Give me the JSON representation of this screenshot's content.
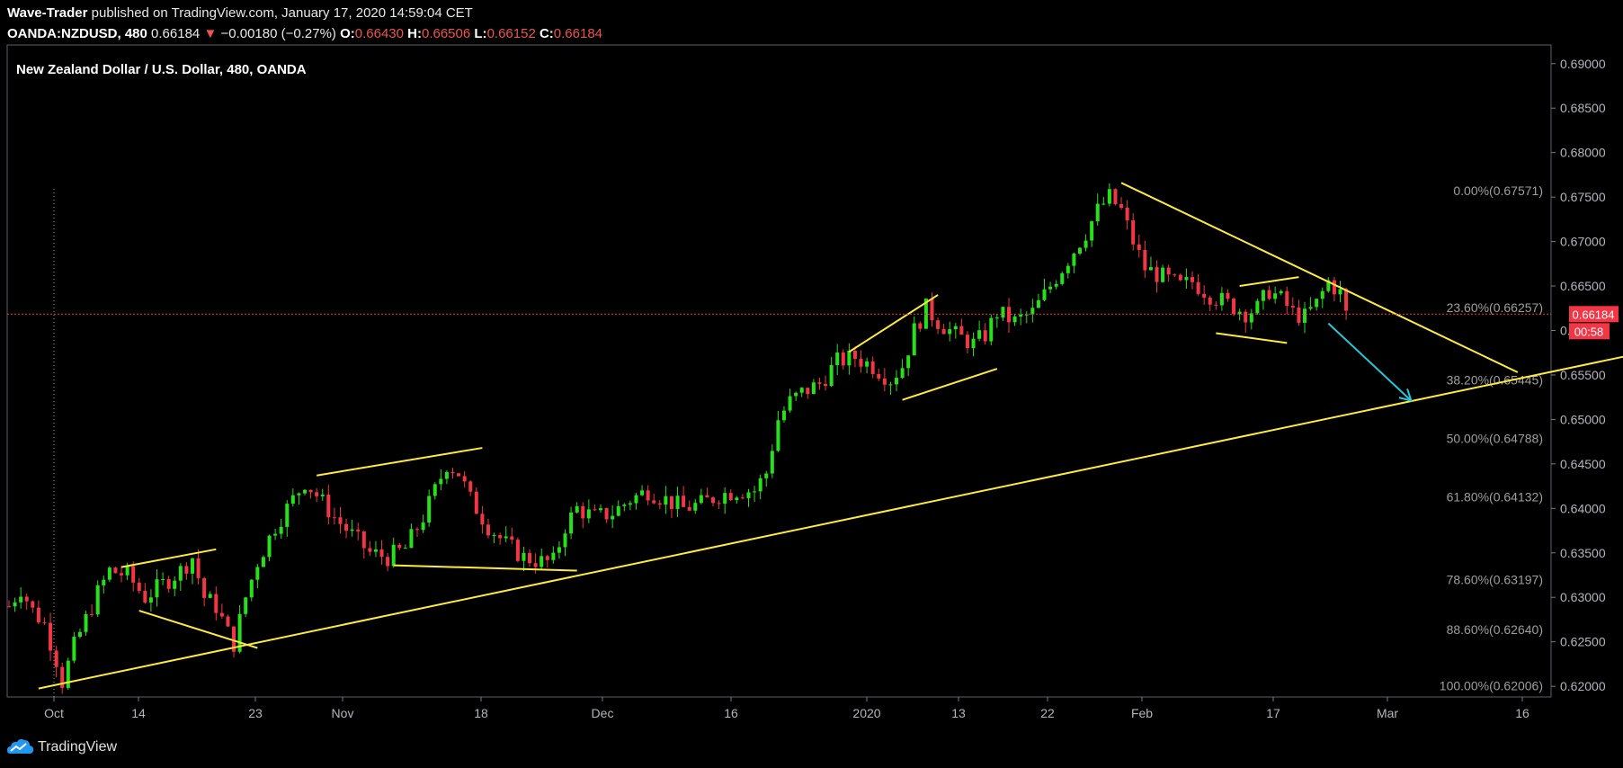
{
  "header": {
    "author": "Wave-Trader",
    "published": "published on TradingView.com, January 17, 2020 14:59:04 CET",
    "symbol": "OANDA:NZDUSD, 480",
    "last": "0.66184",
    "change": "−0.00180 (−0.27%)",
    "open_label": "O:",
    "open": "0.66430",
    "high_label": "H:",
    "high": "0.66506",
    "low_label": "L:",
    "low": "0.66152",
    "close_label": "C:",
    "close": "0.66184"
  },
  "chart_data": {
    "type": "candlestick",
    "title": "New Zealand Dollar / U.S. Dollar, 480, OANDA",
    "ylim": [
      0.6188,
      0.6921
    ],
    "y_ticks": [
      "0.69000",
      "0.68500",
      "0.68000",
      "0.67500",
      "0.67000",
      "0.66500",
      "0.66000",
      "0.65500",
      "0.65000",
      "0.64500",
      "0.64000",
      "0.63500",
      "0.63000",
      "0.62500",
      "0.62000"
    ],
    "x_ticks": [
      "Oct",
      "14",
      "23",
      "Nov",
      "18",
      "Dec",
      "16",
      "2020",
      "13",
      "22",
      "Feb",
      "17",
      "Mar",
      "16"
    ],
    "last_price": {
      "value": 0.66184,
      "label": "0.66184",
      "countdown": "00:58"
    },
    "fibonacci": [
      {
        "label": "0.00%(0.67571)",
        "value": 0.67571
      },
      {
        "label": "23.60%(0.66257)",
        "value": 0.66257
      },
      {
        "label": "38.20%(0.65445)",
        "value": 0.65445
      },
      {
        "label": "50.00%(0.64788)",
        "value": 0.64788
      },
      {
        "label": "61.80%(0.64132)",
        "value": 0.64132
      },
      {
        "label": "78.60%(0.63197)",
        "value": 0.63197
      },
      {
        "label": "88.60%(0.62640)",
        "value": 0.6264
      },
      {
        "label": "100.00%(0.62006)",
        "value": 0.62006
      }
    ],
    "close_path": [
      [
        0,
        0.629
      ],
      [
        2,
        0.631
      ],
      [
        4,
        0.6285
      ],
      [
        6,
        0.627
      ],
      [
        8,
        0.623
      ],
      [
        9,
        0.6205
      ],
      [
        11,
        0.6245
      ],
      [
        13,
        0.6275
      ],
      [
        15,
        0.6305
      ],
      [
        17,
        0.633
      ],
      [
        20,
        0.6325
      ],
      [
        23,
        0.63
      ],
      [
        26,
        0.6315
      ],
      [
        29,
        0.633
      ],
      [
        31,
        0.6345
      ],
      [
        33,
        0.63
      ],
      [
        35,
        0.629
      ],
      [
        37,
        0.626
      ],
      [
        38,
        0.6248
      ],
      [
        40,
        0.63
      ],
      [
        42,
        0.634
      ],
      [
        45,
        0.638
      ],
      [
        48,
        0.641
      ],
      [
        50,
        0.643
      ],
      [
        52,
        0.6415
      ],
      [
        55,
        0.639
      ],
      [
        58,
        0.637
      ],
      [
        61,
        0.635
      ],
      [
        64,
        0.6345
      ],
      [
        67,
        0.6355
      ],
      [
        70,
        0.639
      ],
      [
        72,
        0.642
      ],
      [
        74,
        0.645
      ],
      [
        76,
        0.644
      ],
      [
        78,
        0.641
      ],
      [
        81,
        0.638
      ],
      [
        84,
        0.636
      ],
      [
        87,
        0.6345
      ],
      [
        90,
        0.634
      ],
      [
        92,
        0.634
      ],
      [
        94,
        0.638
      ],
      [
        96,
        0.64
      ],
      [
        99,
        0.639
      ],
      [
        102,
        0.6395
      ],
      [
        105,
        0.641
      ],
      [
        108,
        0.642
      ],
      [
        111,
        0.641
      ],
      [
        114,
        0.64
      ],
      [
        117,
        0.6405
      ],
      [
        120,
        0.6415
      ],
      [
        123,
        0.642
      ],
      [
        126,
        0.642
      ],
      [
        128,
        0.644
      ],
      [
        130,
        0.65
      ],
      [
        132,
        0.652
      ],
      [
        134,
        0.653
      ],
      [
        137,
        0.654
      ],
      [
        140,
        0.6565
      ],
      [
        143,
        0.657
      ],
      [
        146,
        0.656
      ],
      [
        149,
        0.6545
      ],
      [
        151,
        0.656
      ],
      [
        153,
        0.66
      ],
      [
        155,
        0.6625
      ],
      [
        157,
        0.661
      ],
      [
        160,
        0.6595
      ],
      [
        163,
        0.6585
      ],
      [
        165,
        0.6595
      ],
      [
        167,
        0.662
      ],
      [
        170,
        0.661
      ],
      [
        173,
        0.662
      ],
      [
        176,
        0.665
      ],
      [
        179,
        0.668
      ],
      [
        182,
        0.671
      ],
      [
        184,
        0.6735
      ],
      [
        186,
        0.675
      ],
      [
        188,
        0.6735
      ],
      [
        190,
        0.67
      ],
      [
        192,
        0.667
      ],
      [
        195,
        0.666
      ],
      [
        198,
        0.665
      ],
      [
        200,
        0.6655
      ],
      [
        203,
        0.664
      ],
      [
        206,
        0.663
      ],
      [
        209,
        0.662
      ],
      [
        211,
        0.6625
      ],
      [
        213,
        0.6645
      ],
      [
        215,
        0.6635
      ],
      [
        217,
        0.662
      ],
      [
        219,
        0.6615
      ],
      [
        221,
        0.663
      ],
      [
        223,
        0.6655
      ],
      [
        225,
        0.6642
      ],
      [
        226,
        0.6618
      ]
    ],
    "drawings": [
      {
        "type": "trendline",
        "color": "#ffeb3b",
        "from": [
          5,
          0.61975
        ],
        "to": [
          340,
          0.6664
        ]
      },
      {
        "type": "line",
        "color": "#ffeb3b",
        "from": [
          19,
          0.6334
        ],
        "to": [
          35,
          0.6354
        ]
      },
      {
        "type": "line",
        "color": "#ffeb3b",
        "from": [
          22,
          0.6285
        ],
        "to": [
          42,
          0.6243
        ]
      },
      {
        "type": "line",
        "color": "#ffeb3b",
        "from": [
          52,
          0.6437
        ],
        "to": [
          80,
          0.6468
        ]
      },
      {
        "type": "line",
        "color": "#ffeb3b",
        "from": [
          65,
          0.6336
        ],
        "to": [
          96,
          0.633
        ]
      },
      {
        "type": "line",
        "color": "#ffeb3b",
        "from": [
          142,
          0.6576
        ],
        "to": [
          157,
          0.664
        ]
      },
      {
        "type": "line",
        "color": "#ffeb3b",
        "from": [
          151,
          0.6522
        ],
        "to": [
          167,
          0.6557
        ]
      },
      {
        "type": "line",
        "color": "#ffeb3b",
        "from": [
          188,
          0.6766
        ],
        "to": [
          255,
          0.6553
        ]
      },
      {
        "type": "line",
        "color": "#ffeb3b",
        "from": [
          208,
          0.665
        ],
        "to": [
          218,
          0.666
        ]
      },
      {
        "type": "line",
        "color": "#ffeb3b",
        "from": [
          204,
          0.6597
        ],
        "to": [
          216,
          0.6586
        ]
      },
      {
        "type": "arrow",
        "color": "#26c6da",
        "from": [
          223,
          0.6608
        ],
        "to": [
          237,
          0.6521
        ]
      }
    ]
  },
  "footer": {
    "brand": "TradingView"
  }
}
